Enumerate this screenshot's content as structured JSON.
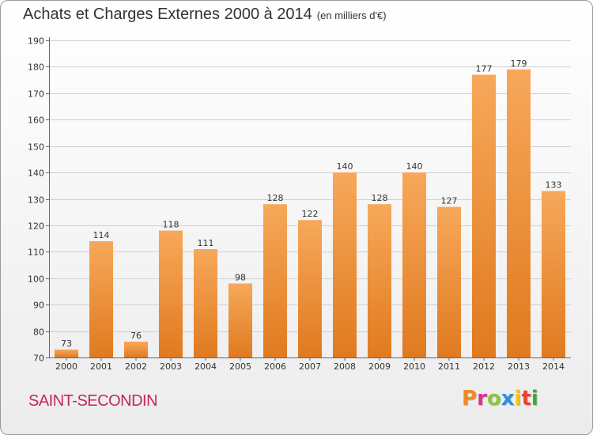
{
  "header": {
    "title": "Achats et Charges Externes 2000 à 2014",
    "subtitle": "(en milliers d'€)"
  },
  "footer": {
    "commune": "SAINT-SECONDIN",
    "logo": "Proxiti",
    "logo_colors": [
      "#f08a24",
      "#d8348c",
      "#8cc63e",
      "#2f8fd8",
      "#f6c21a",
      "#e8452e",
      "#3aaa35"
    ]
  },
  "colors": {
    "bar_light": "#f7a85a",
    "bar_dark": "#e07a1f",
    "grid": "#cfcfcf",
    "axis": "#666666"
  },
  "chart_data": {
    "type": "bar",
    "title": "Achats et Charges Externes 2000 à 2014",
    "subtitle": "(en milliers d'€)",
    "categories": [
      "2000",
      "2001",
      "2002",
      "2003",
      "2004",
      "2005",
      "2006",
      "2007",
      "2008",
      "2009",
      "2010",
      "2011",
      "2012",
      "2013",
      "2014"
    ],
    "values": [
      73,
      114,
      76,
      118,
      111,
      98,
      128,
      122,
      140,
      128,
      140,
      127,
      177,
      179,
      133
    ],
    "ylim": [
      70,
      190
    ],
    "yticks": [
      70,
      80,
      90,
      100,
      110,
      120,
      130,
      140,
      150,
      160,
      170,
      180,
      190
    ],
    "grid": true,
    "data_labels": true
  }
}
